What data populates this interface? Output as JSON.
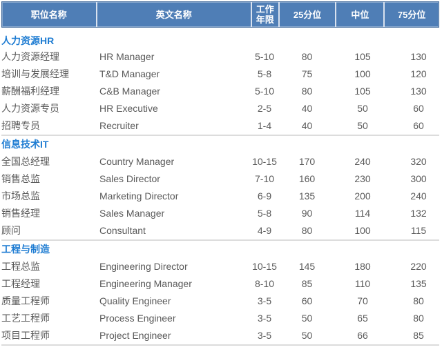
{
  "table": {
    "columns": [
      "职位名称",
      "英文名称",
      "工作年限",
      "25分位",
      "中位",
      "75分位"
    ],
    "sections": [
      {
        "title": "人力资源HR",
        "rows": [
          [
            "人力资源经理",
            "HR Manager",
            "5-10",
            "80",
            "105",
            "130"
          ],
          [
            "培训与发展经理",
            "T&D Manager",
            "5-8",
            "75",
            "100",
            "120"
          ],
          [
            "薪酬福利经理",
            "C&B Manager",
            "5-10",
            "80",
            "105",
            "130"
          ],
          [
            "人力资源专员",
            "HR Executive",
            "2-5",
            "40",
            "50",
            "60"
          ],
          [
            "招聘专员",
            "Recruiter",
            "1-4",
            "40",
            "50",
            "60"
          ]
        ]
      },
      {
        "title": "信息技术IT",
        "rows": [
          [
            "全国总经理",
            "Country Manager",
            "10-15",
            "170",
            "240",
            "320"
          ],
          [
            "销售总监",
            "Sales Director",
            "7-10",
            "160",
            "230",
            "300"
          ],
          [
            "市场总监",
            "Marketing Director",
            "6-9",
            "135",
            "200",
            "240"
          ],
          [
            "销售经理",
            "Sales Manager",
            "5-8",
            "90",
            "114",
            "132"
          ],
          [
            "顾问",
            "Consultant",
            "4-9",
            "80",
            "100",
            "115"
          ]
        ]
      },
      {
        "title": "工程与制造",
        "rows": [
          [
            "工程总监",
            "Engineering Director",
            "10-15",
            "145",
            "180",
            "220"
          ],
          [
            "工程经理",
            "Engineering Manager",
            "8-10",
            "85",
            "110",
            "135"
          ],
          [
            "质量工程师",
            "Quality Engineer",
            "3-5",
            "60",
            "70",
            "80"
          ],
          [
            "工艺工程师",
            "Process Engineer",
            "3-5",
            "50",
            "65",
            "80"
          ],
          [
            "项目工程师",
            "Project Engineer",
            "3-5",
            "50",
            "66",
            "85"
          ]
        ]
      }
    ]
  },
  "colors": {
    "header_bg": "#4F7EB6",
    "header_text": "#FFFFFF",
    "section_title_text": "#1E7CD2",
    "body_text": "#595959",
    "divider": "#DCDCDC"
  }
}
